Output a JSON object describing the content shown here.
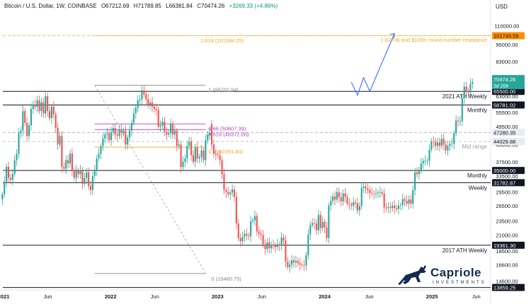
{
  "header": {
    "symbol": "Bitcoin / U.S. Dollar, 1W, COINBASE",
    "open": "O67212.69",
    "high": "H71789.85",
    "low": "L66381.84",
    "close": "C70474.26",
    "change": "+3269.33 (+4.86%)"
  },
  "currency": "USD",
  "logo": {
    "name": "Capriole",
    "sub": "INVESTMENTS"
  },
  "colors": {
    "up": "#26a69a",
    "down": "#ef5350",
    "fib_orange": "#f5a623",
    "fib_purple": "#b144c4",
    "projection": "#2962ff",
    "level": "#131722"
  },
  "chart_data": {
    "type": "candlestick",
    "title": "Bitcoin / U.S. Dollar, 1W, COINBASE",
    "y_scale": "log",
    "ylim": [
      13600,
      135000
    ],
    "y_ticks": [
      110000,
      95000,
      83000,
      72000,
      63000,
      55500,
      49500,
      43000,
      37500,
      33500,
      29500,
      26500,
      23500,
      21000,
      18500,
      16600,
      14600
    ],
    "y_tick_labels": [
      "110000.00",
      "95000.00",
      "83000.00",
      "72000.00",
      "63000.00",
      "55500.00",
      "49500.00",
      "43000.00",
      "37500.00",
      "33500.00",
      "29500.00",
      "26500.00",
      "23500.00",
      "21000.00",
      "18500.00",
      "16600.00",
      "14600.00"
    ],
    "x_ticks": [
      "2021",
      "Jun",
      "2022",
      "Jun",
      "2023",
      "Jun",
      "2024",
      "Jun",
      "2025",
      "Jun"
    ],
    "x_tick_dates": [
      "2021-01-01",
      "2021-06-01",
      "2022-01-01",
      "2022-06-01",
      "2023-01-01",
      "2023-06-01",
      "2024-01-01",
      "2024-06-01",
      "2025-01-01",
      "2025-06-01"
    ],
    "x_range": [
      "2020-12-20",
      "2025-07-20"
    ],
    "candles_start": "2020-12-28",
    "closes": [
      29000,
      32000,
      36000,
      33000,
      32500,
      34000,
      38000,
      40000,
      47000,
      48000,
      56000,
      51000,
      46000,
      50000,
      57000,
      59000,
      58000,
      61000,
      56000,
      60000,
      55000,
      63000,
      56000,
      53000,
      58000,
      54500,
      49000,
      43000,
      46000,
      36000,
      35500,
      38000,
      37000,
      40000,
      35000,
      33000,
      35000,
      34000,
      35000,
      31500,
      33000,
      34500,
      31000,
      30000,
      33500,
      35000,
      38500,
      40000,
      42500,
      45000,
      46500,
      47000,
      44500,
      47500,
      49000,
      46500,
      46000,
      48500,
      47000,
      48000,
      43000,
      45500,
      48000,
      51000,
      55000,
      57500,
      61000,
      61500,
      66000,
      64000,
      61500,
      59000,
      60000,
      58000,
      57000,
      56500,
      49500,
      50000,
      51500,
      47500,
      46500,
      47000,
      50500,
      46500,
      48000,
      42500,
      43000,
      36000,
      37500,
      38500,
      42500,
      44000,
      39500,
      37500,
      42000,
      38500,
      39000,
      41000,
      38000,
      44500,
      46500,
      47000,
      43000,
      40000,
      39700,
      39500,
      38000,
      34000,
      30000,
      29500,
      29000,
      29400,
      30100,
      28400,
      23000,
      20500,
      20000,
      20700,
      21200,
      20900,
      20800,
      23400,
      23600,
      24400,
      21600,
      21200,
      21000,
      19500,
      18800,
      19800,
      18900,
      19400,
      19300,
      19100,
      19500,
      19300,
      20600,
      20100,
      17000,
      16300,
      16600,
      17200,
      16900,
      17100,
      16800,
      16600,
      16550,
      16500,
      17900,
      21100,
      22700,
      23100,
      23000,
      21800,
      24600,
      22200,
      23300,
      22300,
      20500,
      26500,
      27500,
      28500,
      27800,
      29500,
      28300,
      27400,
      29200,
      28400,
      26900,
      26800,
      26500,
      27200,
      27000,
      25500,
      26400,
      30500,
      30800,
      30300,
      30000,
      29300,
      29200,
      29100,
      29200,
      29400,
      29500,
      29100,
      26100,
      26000,
      26200,
      26000,
      26500,
      26000,
      25800,
      26500,
      26600,
      27900,
      27500,
      26900,
      27800,
      26900,
      30000,
      34500,
      34000,
      35000,
      37000,
      37800,
      37800,
      37800,
      41200,
      44000,
      43800,
      42500,
      43700,
      42500,
      45000,
      43000,
      41000,
      42500,
      43200,
      43300,
      47000,
      52000,
      51600,
      51700,
      62000,
      68000,
      65500,
      65000,
      69500,
      70474
    ],
    "open_fixes": {
      "102": 50500
    },
    "current_price": 70474.26,
    "current_price_label": "70474.26",
    "countdown": "3d 20h",
    "fib_levels": [
      {
        "label": "1.618 (101594.25)",
        "value": 101594.25,
        "color": "#f5a623"
      },
      {
        "label": "1 (68702.94)",
        "value": 68702.94,
        "color": "#888888"
      },
      {
        "label": "0.66 (50607.39)",
        "value": 50607.39,
        "color": "#b144c4"
      },
      {
        "label": "0.618 (48372.06)",
        "value": 48372.06,
        "color": "#b144c4"
      },
      {
        "label": "0.5 (42091.84)",
        "value": 42091.84,
        "color": "#f5a623"
      },
      {
        "label": "0 (15480.75)",
        "value": 15480.75,
        "color": "#888888"
      }
    ],
    "fib_anchor_dates": {
      "start": "2021-11-08",
      "end": "2022-11-21"
    },
    "fib_draw_from": "2021-11-08",
    "fib_draw_to": "2022-11-21",
    "horizontal_levels": [
      {
        "value": 101749.59,
        "label": "",
        "price_label": "101749.59",
        "color": "#f5a623",
        "style": "dashed"
      },
      {
        "value": 65500,
        "label": "2021 ATH Weekly",
        "price_label": "65500.00",
        "color": "#131722",
        "style": "solid"
      },
      {
        "value": 58781.02,
        "label": "Monthly",
        "price_label": "58781.02",
        "color": "#131722",
        "style": "solid"
      },
      {
        "value": 47280.35,
        "label": "",
        "price_label": "47280.35",
        "color": "#aab0bd",
        "style": "dashed"
      },
      {
        "value": 44029.88,
        "label": "Mid range",
        "price_label": "44029.88",
        "color": "#aab0bd",
        "style": "dashed"
      },
      {
        "value": 35000,
        "label": "Monthly",
        "price_label": "35000.00",
        "color": "#131722",
        "style": "solid"
      },
      {
        "value": 31782.87,
        "label": "Weekly",
        "price_label": "31782.87",
        "color": "#131722",
        "style": "solid"
      },
      {
        "value": 19361.3,
        "label": "2017 ATH Weekly",
        "price_label": "19361.30",
        "color": "#131722",
        "style": "solid"
      },
      {
        "value": 13859.25,
        "label": "",
        "price_label": "13859.25",
        "color": "#131722",
        "style": "solid"
      }
    ],
    "annotation": "1.62 Fib and $100K round number resistance",
    "projection_points": [
      {
        "date": "2024-04-01",
        "price": 70474
      },
      {
        "date": "2024-04-22",
        "price": 63500
      },
      {
        "date": "2024-05-13",
        "price": 73000
      },
      {
        "date": "2024-06-03",
        "price": 65500
      },
      {
        "date": "2024-08-26",
        "price": 103500
      }
    ],
    "diagonal_from": {
      "date": "2021-11-08",
      "price": 68702.94
    },
    "diagonal_to": {
      "date": "2022-11-21",
      "price": 15480.75
    }
  }
}
